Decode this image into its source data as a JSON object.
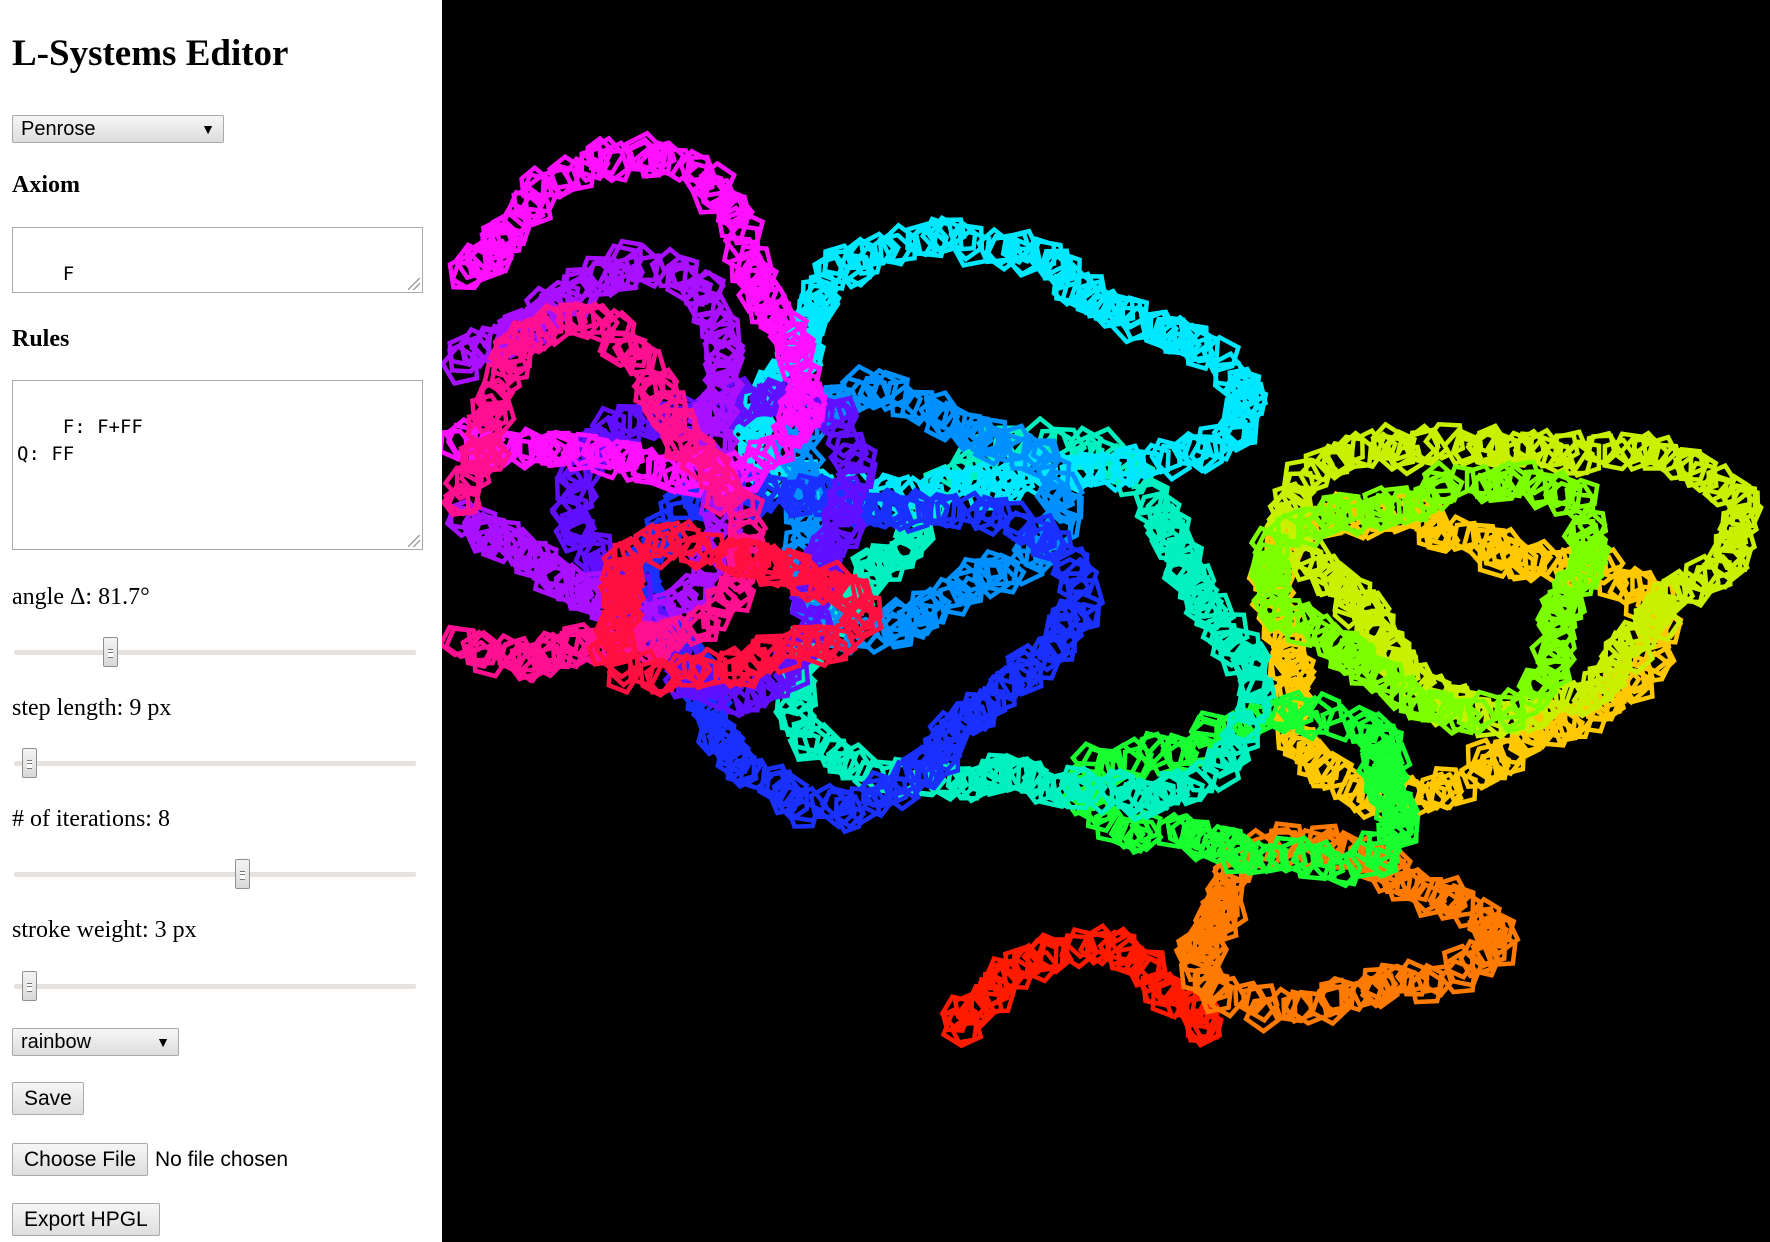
{
  "app": {
    "title": "L-Systems Editor"
  },
  "preset_select": {
    "value": "Penrose"
  },
  "axiom": {
    "heading": "Axiom",
    "value": "F"
  },
  "rules": {
    "heading": "Rules",
    "value": "F: F+FF\nQ: FF"
  },
  "sliders": {
    "angle": {
      "label": "angle Δ: 81.7°",
      "value": 81.7,
      "fraction": 0.23
    },
    "step_length": {
      "label": "step length: 9 px",
      "value": 9,
      "fraction": 0.02
    },
    "iterations": {
      "label": "# of iterations: 8",
      "value": 8,
      "fraction": 0.57
    },
    "stroke_weight": {
      "label": "stroke weight: 3 px",
      "value": 3,
      "fraction": 0.02
    }
  },
  "color_select": {
    "value": "rainbow"
  },
  "buttons": {
    "save": "Save",
    "choose_file": "Choose File",
    "file_status": "No file chosen",
    "export": "Export HPGL"
  },
  "canvas": {
    "background": "#000000",
    "palette": "rainbow",
    "colors": [
      "#ff1a00",
      "#ff7a00",
      "#ffc800",
      "#c8f000",
      "#7cff00",
      "#19ff30",
      "#00f0c0",
      "#00e8ff",
      "#0090ff",
      "#1a30ff",
      "#6010ff",
      "#a810ff",
      "#ff10ff",
      "#ff1090",
      "#ff1040"
    ]
  }
}
